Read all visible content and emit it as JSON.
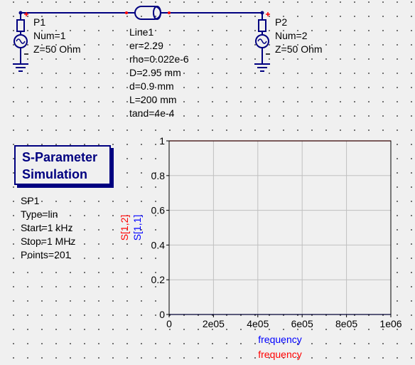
{
  "ports": [
    {
      "name": "P1",
      "num": "Num=1",
      "z": "Z=50 Ohm"
    },
    {
      "name": "P2",
      "num": "Num=2",
      "z": "Z=50 Ohm"
    }
  ],
  "line": {
    "name": "Line1",
    "props": [
      "er=2.29",
      "rho=0.022e-6",
      "D=2.95 mm",
      "d=0.9 mm",
      "L=200 mm",
      "tand=4e-4"
    ]
  },
  "simulation": {
    "title_line1": "S-Parameter",
    "title_line2": "Simulation",
    "name": "SP1",
    "props": [
      "Type=lin",
      "Start=1 kHz",
      "Stop=1 MHz",
      "Points=201"
    ]
  },
  "chart_data": {
    "type": "line",
    "x_ticks": [
      "0",
      "2e05",
      "4e05",
      "6e05",
      "8e05",
      "1e06"
    ],
    "y_ticks": [
      "0",
      "0.2",
      "0.4",
      "0.6",
      "0.8",
      "1"
    ],
    "xlim": [
      0,
      1000000
    ],
    "ylim": [
      0,
      1
    ],
    "grid": true,
    "ylabels": [
      "S[1,2]",
      "S[1,1]"
    ],
    "xlabels": [
      "frequency",
      "frequency"
    ],
    "colors": {
      "s12": "#ff0000",
      "s11": "#0000ff"
    },
    "series": [
      {
        "name": "S[1,2]",
        "color": "#ff0000",
        "x": [
          1000,
          1000000
        ],
        "y": [
          1,
          1
        ]
      },
      {
        "name": "S[1,1]",
        "color": "#0000ff",
        "x": [
          1000,
          1000000
        ],
        "y": [
          0,
          0
        ]
      }
    ]
  }
}
